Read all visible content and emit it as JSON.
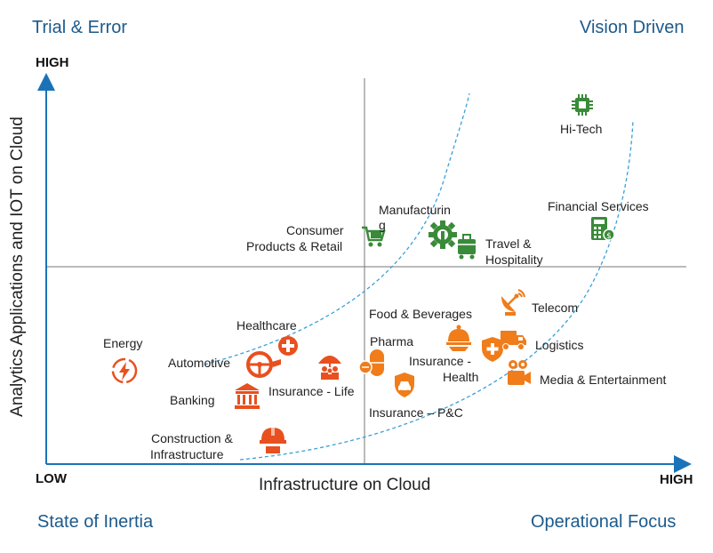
{
  "quadrants": {
    "top_left": "Trial & Error",
    "top_right": "Vision Driven",
    "bottom_left": "State of Inertia",
    "bottom_right": "Operational Focus"
  },
  "axes": {
    "y_high": "HIGH",
    "y_title": "Analytics Applications and IOT on Cloud",
    "x_low": "LOW",
    "x_title": "Infrastructure on Cloud",
    "x_high": "HIGH"
  },
  "colors": {
    "axis": "#1a73b8",
    "divider": "#777777",
    "curve": "#3aa0d8",
    "green": "#3a8a3a",
    "orange": "#f07c1a",
    "red_orange": "#e8501f",
    "quadrant_text": "#1c5a8c"
  },
  "sectors": {
    "energy": {
      "label": "Energy",
      "icon": "lightning-icon"
    },
    "automotive": {
      "label": "Automotive",
      "icon": "steering-wheel-icon"
    },
    "healthcare": {
      "label": "Healthcare",
      "icon": "medical-cross-icon"
    },
    "banking": {
      "label": "Banking",
      "icon": "bank-icon"
    },
    "insurance_life": {
      "label": "Insurance - Life",
      "icon": "umbrella-family-icon"
    },
    "construction": {
      "line1": "Construction &",
      "line2": "Infrastructure",
      "icon": "hardhat-icon"
    },
    "consumer": {
      "line1": "Consumer",
      "line2": "Products & Retail",
      "icon": "shopping-cart-icon"
    },
    "manufacturing": {
      "line1": "Manufacturin",
      "line2": "g",
      "icon": "gear-icon"
    },
    "travel": {
      "line1": "Travel &",
      "line2": "Hospitality",
      "icon": "luggage-icon"
    },
    "hitech": {
      "label": "Hi-Tech",
      "icon": "chip-icon"
    },
    "financial": {
      "label": "Financial Services",
      "icon": "calculator-icon"
    },
    "food": {
      "label": "Food & Beverages",
      "icon": "cloche-icon"
    },
    "telecom": {
      "label": "Telecom",
      "icon": "satellite-dish-icon"
    },
    "pharma": {
      "label": "Pharma",
      "icon": "pill-icon"
    },
    "insurance_health": {
      "line1": "Insurance -",
      "line2": "Health",
      "icon": "health-shield-icon"
    },
    "logistics": {
      "label": "Logistics",
      "icon": "truck-icon"
    },
    "media": {
      "label": "Media & Entertainment",
      "icon": "video-camera-icon"
    },
    "insurance_pc": {
      "label": "Insurance – P&C",
      "icon": "car-insurance-icon"
    }
  }
}
